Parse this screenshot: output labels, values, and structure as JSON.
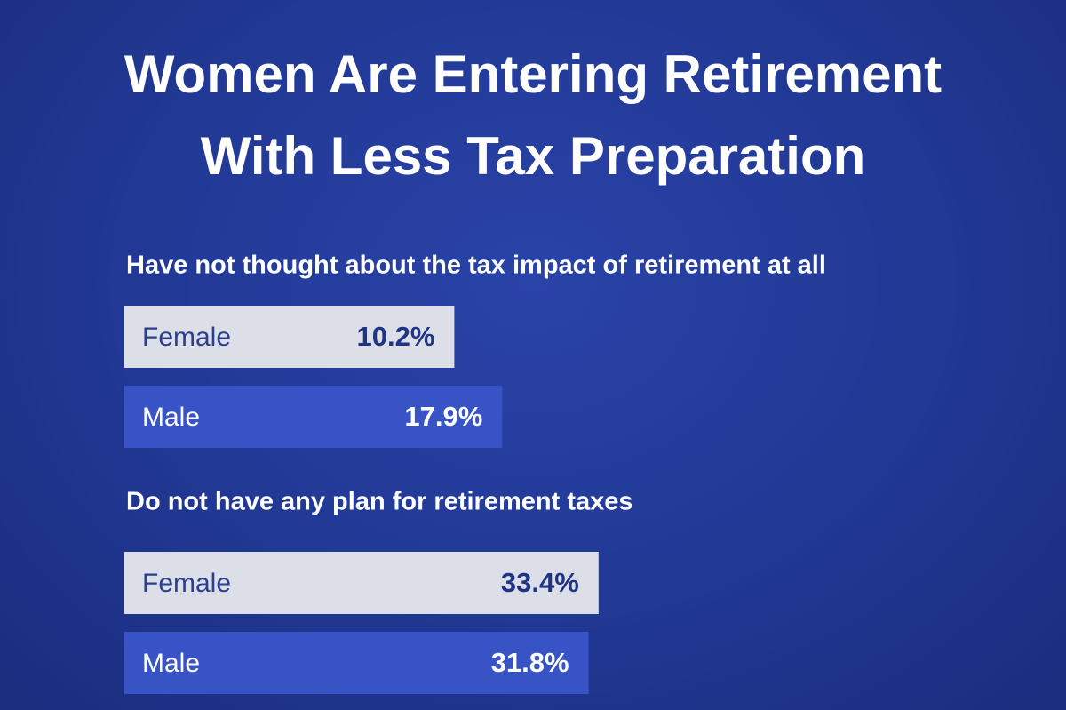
{
  "title": "Women Are Entering Retirement With Less Tax Preparation",
  "chart_data": [
    {
      "type": "bar",
      "title": "Have not thought about the tax impact of retirement at all",
      "categories": [
        "Female",
        "Male"
      ],
      "values": [
        10.2,
        17.9
      ],
      "value_labels": [
        "10.2%",
        "17.9%"
      ],
      "colors": [
        "#dcdee8",
        "#3853c6"
      ]
    },
    {
      "type": "bar",
      "title": "Do not have any plan for retirement taxes",
      "categories": [
        "Female",
        "Male"
      ],
      "values": [
        33.4,
        31.8
      ],
      "value_labels": [
        "33.4%",
        "31.8%"
      ],
      "colors": [
        "#dcdee8",
        "#3853c6"
      ]
    }
  ]
}
